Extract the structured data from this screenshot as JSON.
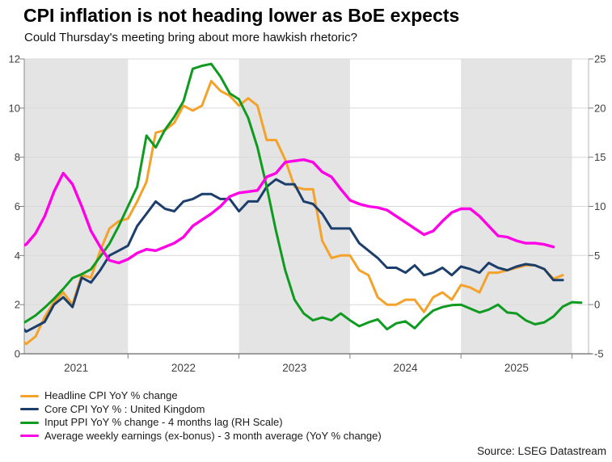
{
  "header": {
    "title": "CPI inflation is not heading lower as BoE expects",
    "subtitle": "Could Thursday's meeting bring about more hawkish rhetoric?"
  },
  "footer": {
    "source": "Source: LSEG Datastream"
  },
  "colors": {
    "band": "#e4e4e4",
    "grid": "#d9d9d9",
    "axis_bottom": "#808080",
    "axis_left": "#8a8a8a",
    "axis_right": "#b3b3b3",
    "tick": "#808080",
    "tick_label": "#404040"
  },
  "chart_data": {
    "type": "line",
    "x_start": "2021-01",
    "x_unit": "month",
    "years": [
      "2021",
      "2022",
      "2023",
      "2024",
      "2025"
    ],
    "shaded_years": [
      "2021",
      "2023",
      "2025"
    ],
    "grid": true,
    "legend_position": "bottom-left",
    "y_left": {
      "range": [
        0,
        12
      ],
      "ticks": [
        0,
        2,
        4,
        6,
        8,
        10,
        12
      ]
    },
    "y_right": {
      "range": [
        -5,
        25
      ],
      "ticks": [
        -5,
        0,
        5,
        10,
        15,
        20,
        25
      ]
    },
    "series": [
      {
        "name": "Headline CPI YoY % change",
        "slug": "headline-cpi",
        "color": "#F4A229",
        "axis": "left",
        "start": "2021-01",
        "values": [
          0.7,
          0.4,
          0.7,
          1.5,
          2.1,
          2.5,
          2.0,
          3.2,
          3.1,
          4.2,
          5.1,
          5.4,
          5.5,
          6.2,
          7.0,
          9.0,
          9.1,
          9.4,
          10.1,
          9.9,
          10.1,
          11.1,
          10.7,
          10.5,
          10.1,
          10.4,
          10.1,
          8.7,
          8.7,
          7.9,
          6.8,
          6.7,
          6.7,
          4.6,
          3.9,
          4.0,
          4.0,
          3.4,
          3.2,
          2.3,
          2.0,
          2.0,
          2.2,
          2.2,
          1.7,
          2.3,
          2.5,
          2.2,
          2.8,
          2.7,
          2.5,
          3.3,
          3.3,
          3.4,
          3.5,
          3.6,
          3.6,
          3.45,
          3.05,
          3.2
        ]
      },
      {
        "name": "Core CPI YoY % : United Kingdom",
        "slug": "core-cpi",
        "color": "#1C3E6B",
        "axis": "left",
        "start": "2021-01",
        "values": [
          1.3,
          0.9,
          1.1,
          1.3,
          2.0,
          2.3,
          1.9,
          3.1,
          2.9,
          3.4,
          4.0,
          4.2,
          4.4,
          5.2,
          5.7,
          6.2,
          5.9,
          5.8,
          6.2,
          6.3,
          6.5,
          6.5,
          6.3,
          6.3,
          5.8,
          6.2,
          6.2,
          6.8,
          7.1,
          6.9,
          6.9,
          6.2,
          6.1,
          5.7,
          5.1,
          5.1,
          5.1,
          4.5,
          4.2,
          3.9,
          3.5,
          3.5,
          3.3,
          3.6,
          3.2,
          3.3,
          3.5,
          3.2,
          3.55,
          3.45,
          3.3,
          3.7,
          3.5,
          3.4,
          3.55,
          3.65,
          3.6,
          3.45,
          3.0,
          3.0
        ]
      },
      {
        "name": "Input PPI YoY % change - 4 months lag (RH Scale)",
        "slug": "input-ppi",
        "color": "#0E9B20",
        "axis": "right",
        "start": "2021-01",
        "values": [
          -2.2,
          -1.7,
          -1.1,
          -0.3,
          0.6,
          1.6,
          2.7,
          3.1,
          3.6,
          4.9,
          6.2,
          8.0,
          10.0,
          12.0,
          17.2,
          16.0,
          17.8,
          19.1,
          20.7,
          24.0,
          24.3,
          24.5,
          23.2,
          21.5,
          20.9,
          19.0,
          16.0,
          12.0,
          7.5,
          3.5,
          0.5,
          -0.9,
          -1.6,
          -1.3,
          -1.6,
          -0.9,
          -1.6,
          -2.2,
          -1.8,
          -1.5,
          -2.5,
          -1.9,
          -1.7,
          -2.4,
          -1.4,
          -0.6,
          -0.25,
          -0.05,
          0.0,
          -0.4,
          -0.8,
          -0.5,
          0.0,
          -0.8,
          -0.9,
          -1.6,
          -2.0,
          -1.8,
          -1.2,
          -0.2,
          0.25,
          0.2
        ]
      },
      {
        "name": "Average weekly earnings (ex-bonus) - 3 month average (YoY % change)",
        "slug": "awe",
        "color": "#FF00E6",
        "axis": "left",
        "start": "2021-01",
        "values": [
          4.3,
          4.45,
          4.9,
          5.6,
          6.6,
          7.35,
          6.9,
          6.0,
          5.0,
          4.35,
          3.8,
          3.7,
          3.85,
          4.1,
          4.25,
          4.2,
          4.35,
          4.5,
          4.75,
          5.2,
          5.45,
          5.7,
          6.0,
          6.4,
          6.55,
          6.6,
          6.65,
          7.2,
          7.35,
          7.8,
          7.85,
          7.9,
          7.8,
          7.4,
          7.2,
          6.7,
          6.25,
          6.1,
          6.0,
          5.95,
          5.85,
          5.6,
          5.35,
          5.1,
          4.85,
          5.0,
          5.4,
          5.75,
          5.9,
          5.9,
          5.6,
          5.2,
          4.8,
          4.75,
          4.6,
          4.5,
          4.5,
          4.45,
          4.35
        ]
      }
    ]
  }
}
